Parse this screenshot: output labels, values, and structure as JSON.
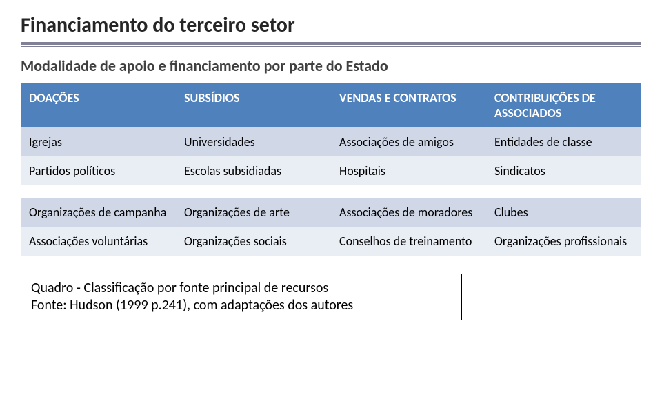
{
  "title": "Financiamento do terceiro setor",
  "subtitle": "Modalidade de apoio e financiamento por parte do Estado",
  "colors": {
    "header_bg": "#4f81bd",
    "header_text": "#ffffff",
    "band1_bg": "#d0d8e8",
    "band2_bg": "#e9edf4",
    "rule": "#808097",
    "page_bg": "#ffffff",
    "title_text": "#262626",
    "subtitle_text": "#404040",
    "body_text": "#000000"
  },
  "typography": {
    "title_fontsize": 30,
    "subtitle_fontsize": 22,
    "table_fontsize": 18,
    "caption_fontsize": 20,
    "family": "Calibri"
  },
  "table": {
    "type": "table",
    "columns": [
      "DOAÇÕES",
      "SUBSÍDIOS",
      "VENDAS E CONTRATOS",
      "CONTRIBUIÇÕES DE ASSOCIADOS"
    ],
    "rows_block1": [
      [
        "Igrejas",
        "Universidades",
        "Associações de amigos",
        "Entidades de classe"
      ],
      [
        "Partidos políticos",
        "Escolas subsidiadas",
        "Hospitais",
        "Sindicatos"
      ]
    ],
    "rows_block2": [
      [
        "Organizações de campanha",
        "Organizações de arte",
        "Associações de moradores",
        "Clubes"
      ],
      [
        "Associações voluntárias",
        "Organizações sociais",
        "Conselhos de treinamento",
        "Organizações profissionais"
      ]
    ],
    "column_widths_pct": [
      25,
      25,
      25,
      25
    ]
  },
  "caption": {
    "line1": "Quadro - Classificação por fonte principal de recursos",
    "line2": "Fonte: Hudson (1999 p.241), com adaptações dos autores"
  }
}
